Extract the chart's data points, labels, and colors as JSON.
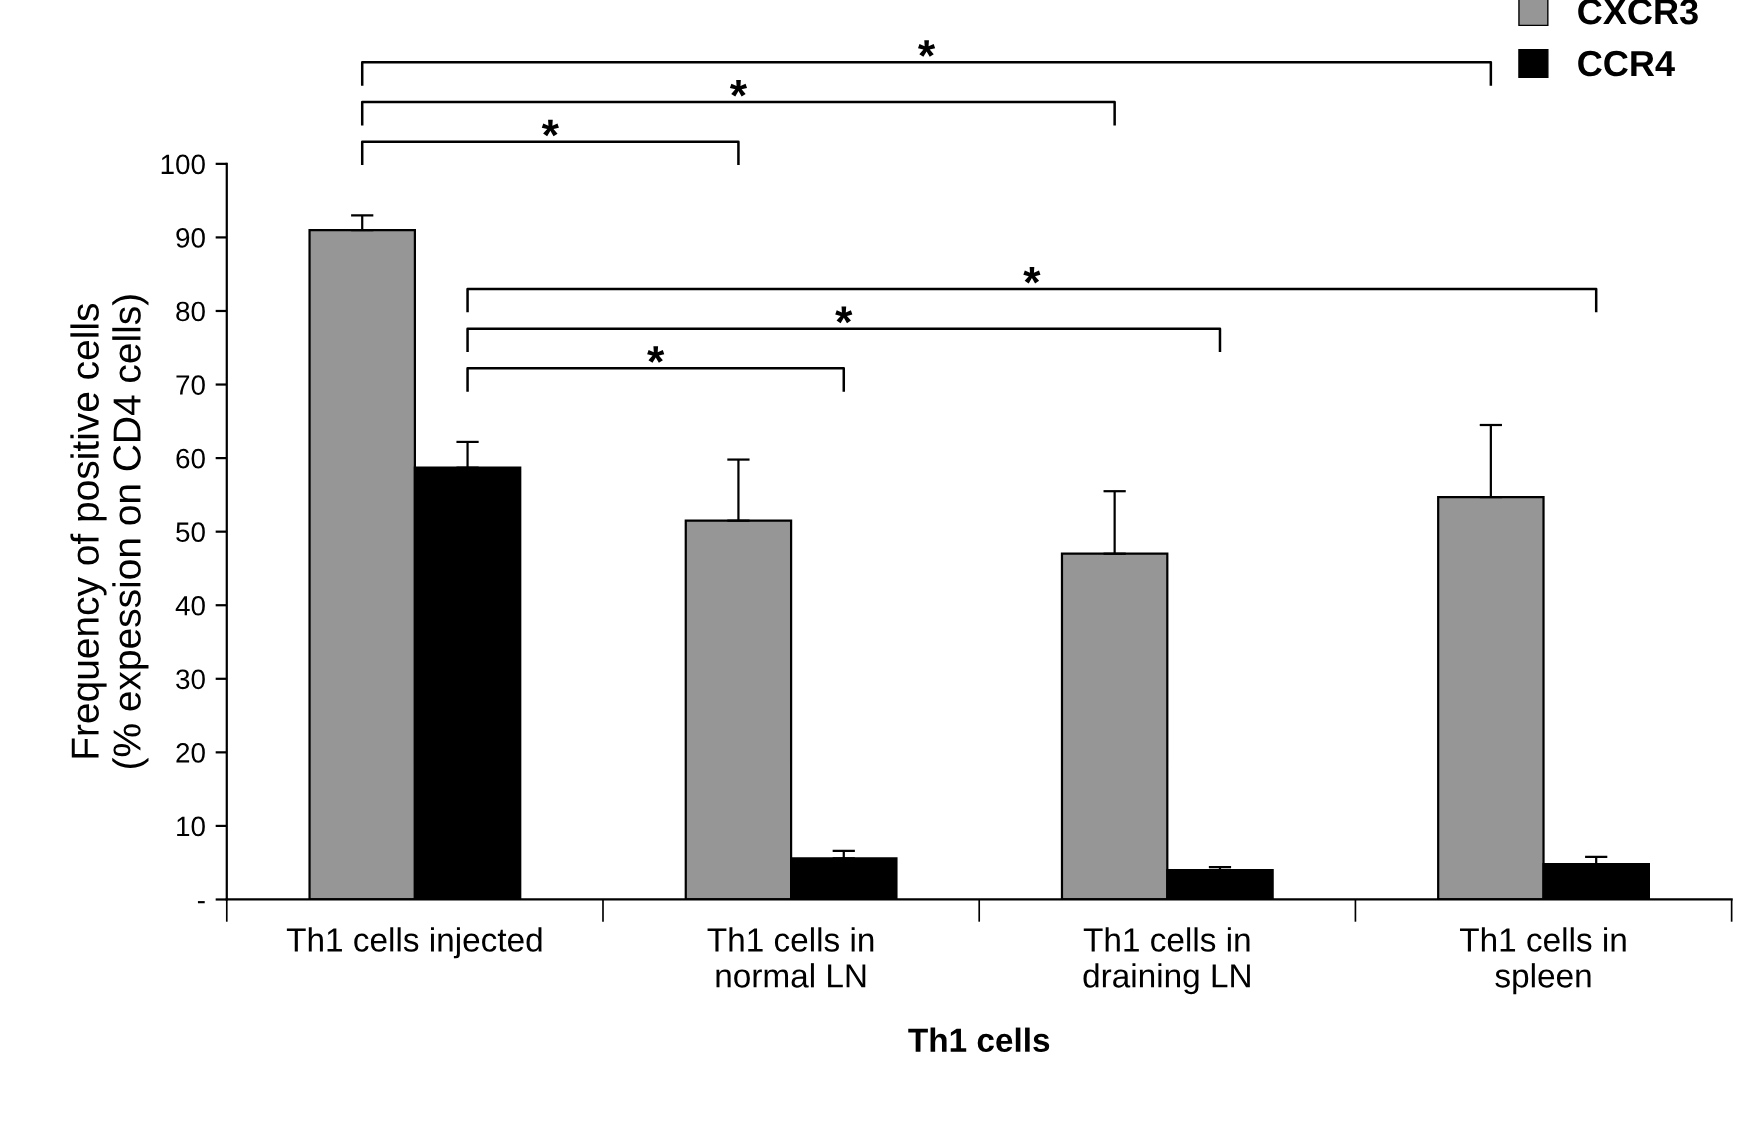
{
  "chart_data": {
    "type": "bar",
    "xlabel": "Th1 cells",
    "ylabel": "Frequency of positive cells\n(% expession on CD4 cells)",
    "categories": [
      "Th1 cells injected",
      "Th1 cells in\nnormal LN",
      "Th1 cells in\ndraining LN",
      "Th1 cells in\nspleen"
    ],
    "series": [
      {
        "name": "CXCR3",
        "color": "#969696",
        "values": [
          91,
          51.5,
          47,
          54.7
        ],
        "errors": [
          2,
          8.3,
          8.5,
          9.8
        ]
      },
      {
        "name": "CCR4",
        "color": "#000000",
        "values": [
          58.7,
          5.6,
          4,
          4.8
        ],
        "errors": [
          3.5,
          1,
          0.4,
          1
        ]
      }
    ],
    "ylim": [
      0,
      100
    ],
    "yticks": [
      {
        "value": 0,
        "label": "-"
      },
      10,
      20,
      30,
      40,
      50,
      60,
      70,
      80,
      90,
      100
    ],
    "legend": "top right",
    "grid": false,
    "annotations": [
      "*",
      "*",
      "*",
      "*",
      "*",
      "*"
    ]
  }
}
